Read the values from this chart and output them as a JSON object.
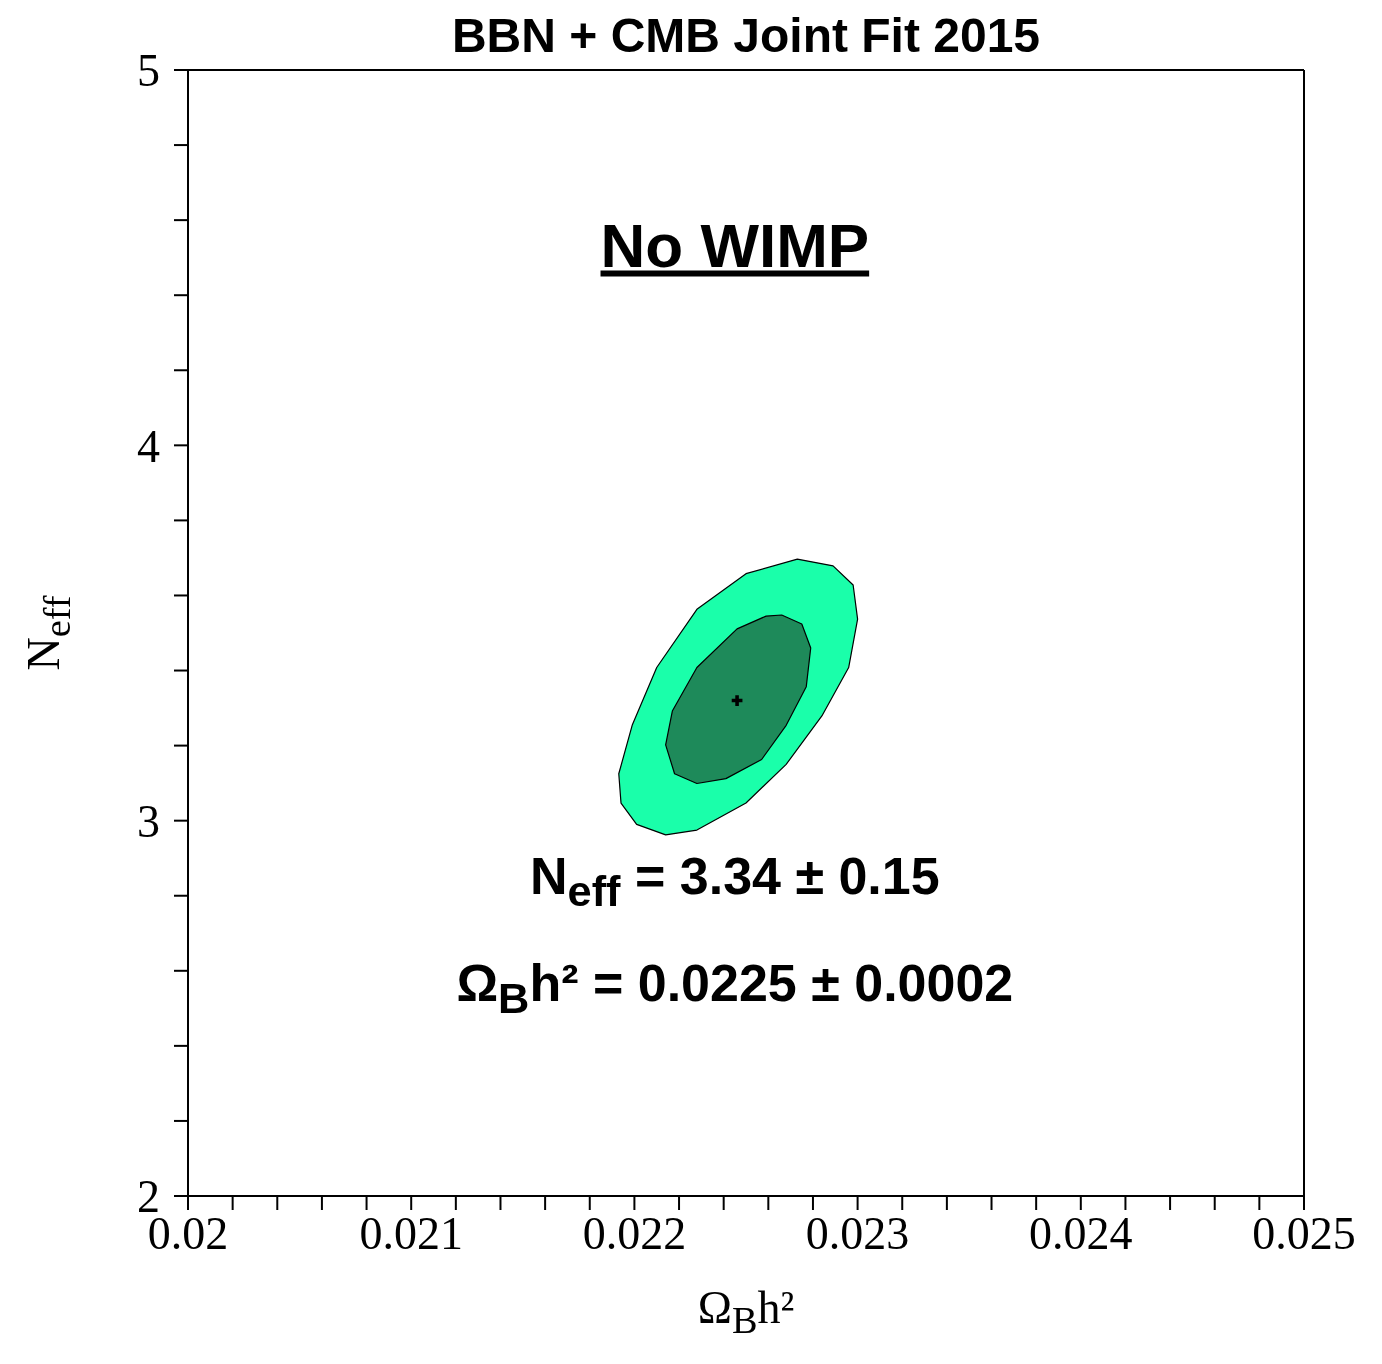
{
  "chart_data": {
    "type": "area",
    "title": "BBN + CMB  Joint  Fit  2015",
    "xlabel": "Ω$_{B}$h²",
    "ylabel": "N$_{eff}$",
    "annotations": [
      "No  WIMP",
      "N$_{eff}$  =  3.34 ± 0.15",
      "Ω$_{B}$h² = 0.0225 ± 0.0002"
    ],
    "xlim": [
      0.02,
      0.025
    ],
    "xticks": [
      0.02,
      {
        "value": 0.0202,
        "label": null
      },
      {
        "value": 0.0204,
        "label": null
      },
      {
        "value": 0.0206,
        "label": null
      },
      {
        "value": 0.0208,
        "label": null
      },
      0.021,
      {
        "value": 0.0212,
        "label": null
      },
      {
        "value": 0.0214,
        "label": null
      },
      {
        "value": 0.0216,
        "label": null
      },
      {
        "value": 0.0218,
        "label": null
      },
      0.022,
      {
        "value": 0.0222,
        "label": null
      },
      {
        "value": 0.0224,
        "label": null
      },
      {
        "value": 0.0226,
        "label": null
      },
      {
        "value": 0.0228,
        "label": null
      },
      0.023,
      {
        "value": 0.0232,
        "label": null
      },
      {
        "value": 0.0234,
        "label": null
      },
      {
        "value": 0.0236,
        "label": null
      },
      {
        "value": 0.0238,
        "label": null
      },
      0.024,
      {
        "value": 0.0242,
        "label": null
      },
      {
        "value": 0.0244,
        "label": null
      },
      {
        "value": 0.0246,
        "label": null
      },
      {
        "value": 0.0248,
        "label": null
      },
      0.025
    ],
    "ylim": [
      2,
      5
    ],
    "yticks": [
      2,
      {
        "value": 2.2,
        "label": null
      },
      {
        "value": 2.4,
        "label": null
      },
      {
        "value": 2.6,
        "label": null
      },
      {
        "value": 2.8,
        "label": null
      },
      3,
      {
        "value": 3.2,
        "label": null
      },
      {
        "value": 3.4,
        "label": null
      },
      {
        "value": 3.6,
        "label": null
      },
      {
        "value": 3.8,
        "label": null
      },
      4,
      {
        "value": 4.2,
        "label": null
      },
      {
        "value": 4.4,
        "label": null
      },
      {
        "value": 4.6,
        "label": null
      },
      {
        "value": 4.8,
        "label": null
      },
      5
    ],
    "grid": false,
    "legend": false,
    "series": [
      {
        "color": "#1affaa",
        "x": [
          0.02273,
          0.02289,
          0.02298,
          0.023,
          0.02296,
          0.02284,
          0.02268,
          0.0225,
          0.02228,
          0.02214,
          0.02201,
          0.02194,
          0.02193,
          0.02199,
          0.0221,
          0.02228,
          0.0225
        ],
        "values": [
          3.697,
          3.679,
          3.628,
          3.537,
          3.408,
          3.279,
          3.15,
          3.047,
          2.975,
          2.962,
          2.99,
          3.047,
          3.125,
          3.254,
          3.408,
          3.563,
          3.658
        ]
      },
      {
        "color": "#1e8a5a",
        "x": [
          0.02266,
          0.02275,
          0.02279,
          0.02277,
          0.02268,
          0.02257,
          0.02241,
          0.02228,
          0.02218,
          0.02214,
          0.02217,
          0.02228,
          0.02246,
          0.02259
        ],
        "values": [
          3.548,
          3.524,
          3.46,
          3.357,
          3.254,
          3.163,
          3.112,
          3.099,
          3.125,
          3.202,
          3.292,
          3.408,
          3.511,
          3.545
        ]
      },
      {
        "type": "scatter",
        "color": "#000000",
        "marker": "cross",
        "x": [
          0.02246
        ],
        "values": [
          3.32
        ]
      }
    ]
  }
}
